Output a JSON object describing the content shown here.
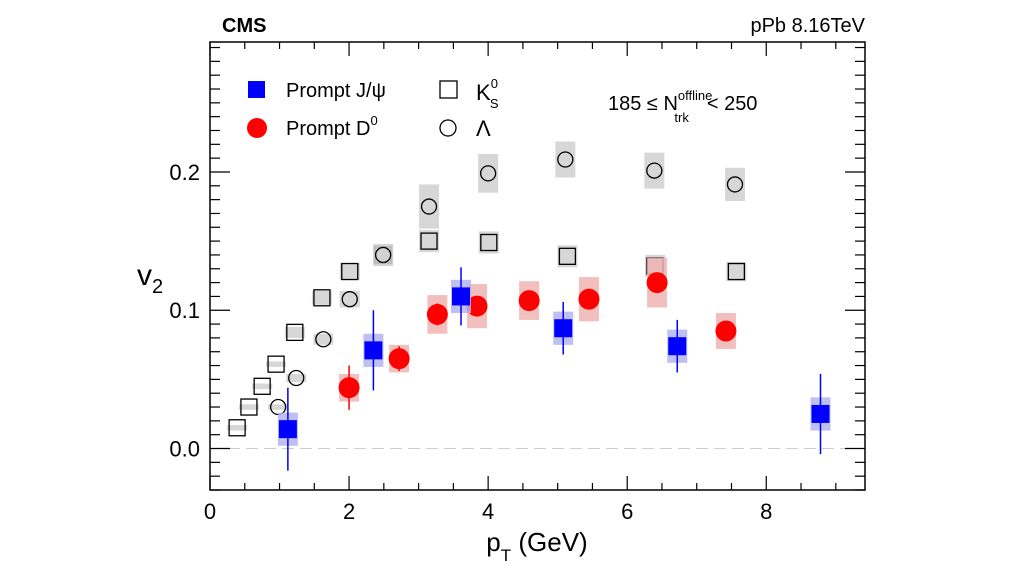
{
  "chart_data": {
    "type": "scatter",
    "experiment_label": "CMS",
    "system_label": "pPb 8.16TeV",
    "selection": {
      "prefix": "185 ≤ N",
      "sup": "offline",
      "sub": "trk",
      "suffix": "< 250"
    },
    "xlabel": {
      "main": "p",
      "sub": "T",
      "unit": " (GeV)"
    },
    "ylabel": {
      "main": "v",
      "sub": "2"
    },
    "xlim": [
      0,
      9.42
    ],
    "ylim": [
      -0.03,
      0.294
    ],
    "xticks": [
      0,
      2,
      4,
      6,
      8
    ],
    "xtick_labels": [
      "0",
      "2",
      "4",
      "6",
      "8"
    ],
    "yticks": [
      0.0,
      0.1,
      0.2
    ],
    "ytick_labels": [
      "0.0",
      "0.1",
      "0.2"
    ],
    "reference_line": 0,
    "grid": false,
    "legend_position": "top-left",
    "series": [
      {
        "name": "Prompt J/ψ",
        "marker": "filled-square",
        "color": "#0000ff",
        "sys_color": "#b4b4f0",
        "points": [
          [
            1.12,
            0.014,
            0.03,
            0.012
          ],
          [
            2.35,
            0.071,
            0.029,
            0.012
          ],
          [
            3.61,
            0.11,
            0.021,
            0.012
          ],
          [
            5.08,
            0.087,
            0.019,
            0.012
          ],
          [
            6.72,
            0.074,
            0.019,
            0.012
          ],
          [
            8.78,
            0.025,
            0.029,
            0.012
          ]
        ]
      },
      {
        "name": "Prompt D",
        "name_sup": "0",
        "marker": "filled-circle",
        "color": "#ff0000",
        "sys_color": "#f0b4b4",
        "points": [
          [
            2.0,
            0.044,
            0.016,
            0.01
          ],
          [
            2.72,
            0.065,
            0.009,
            0.01
          ],
          [
            3.27,
            0.097,
            0.008,
            0.014
          ],
          [
            3.84,
            0.103,
            0.005,
            0.016
          ],
          [
            4.59,
            0.107,
            0.005,
            0.014
          ],
          [
            5.45,
            0.108,
            0.005,
            0.016
          ],
          [
            6.43,
            0.12,
            0.005,
            0.018
          ],
          [
            7.42,
            0.085,
            0.005,
            0.013
          ]
        ]
      },
      {
        "name": "K",
        "name_sup": "0",
        "name_sub": "S",
        "marker": "open-square",
        "color": "#000000",
        "sys_color": "#d0d0d0",
        "points": [
          [
            0.39,
            0.015,
            0,
            0.002
          ],
          [
            0.56,
            0.03,
            0,
            0.002
          ],
          [
            0.75,
            0.045,
            0,
            0.002
          ],
          [
            0.95,
            0.061,
            0,
            0.002
          ],
          [
            1.22,
            0.084,
            0,
            0.004
          ],
          [
            1.61,
            0.109,
            0,
            0.005
          ],
          [
            2.01,
            0.128,
            0,
            0.006
          ],
          [
            2.49,
            0.14,
            0,
            0.007
          ],
          [
            3.15,
            0.15,
            0,
            0.008
          ],
          [
            4.01,
            0.149,
            0,
            0.008
          ],
          [
            5.14,
            0.139,
            0,
            0.008
          ],
          [
            6.4,
            0.132,
            0,
            0.008
          ],
          [
            7.57,
            0.128,
            0,
            0.007
          ]
        ]
      },
      {
        "name": "Λ",
        "marker": "open-circle",
        "color": "#000000",
        "sys_color": "#d0d0d0",
        "points": [
          [
            0.98,
            0.03,
            0,
            0.002
          ],
          [
            1.24,
            0.051,
            0,
            0.003
          ],
          [
            1.63,
            0.079,
            0,
            0.004
          ],
          [
            2.01,
            0.108,
            0,
            0.006
          ],
          [
            2.49,
            0.14,
            0,
            0.008
          ],
          [
            3.15,
            0.175,
            0,
            0.016
          ],
          [
            4.0,
            0.199,
            0,
            0.014
          ],
          [
            5.11,
            0.209,
            0,
            0.013
          ],
          [
            6.39,
            0.201,
            0,
            0.013
          ],
          [
            7.55,
            0.191,
            0,
            0.012
          ]
        ]
      }
    ]
  }
}
